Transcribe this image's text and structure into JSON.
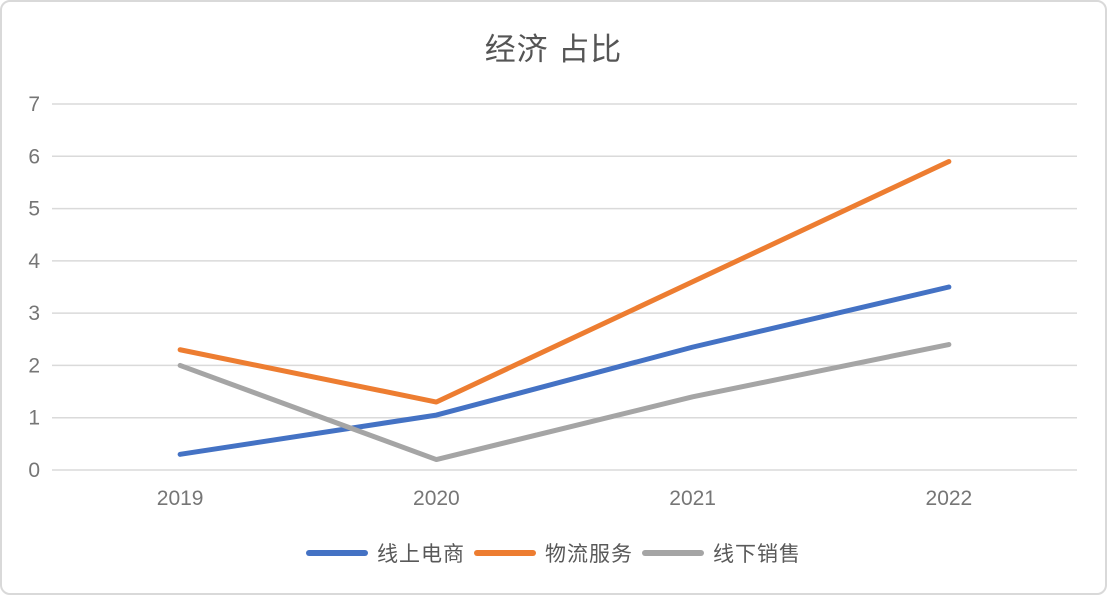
{
  "chart_data": {
    "type": "line",
    "title": "经济 占比",
    "categories": [
      "2019",
      "2020",
      "2021",
      "2022"
    ],
    "series": [
      {
        "name": "线上电商",
        "color": "#4472C4",
        "values": [
          0.3,
          1.05,
          2.35,
          3.5
        ]
      },
      {
        "name": "物流服务",
        "color": "#ED7D31",
        "values": [
          2.3,
          1.3,
          3.6,
          5.9
        ]
      },
      {
        "name": "线下销售",
        "color": "#A5A5A5",
        "values": [
          2.0,
          0.2,
          1.4,
          2.4
        ]
      }
    ],
    "ylim": [
      0,
      7
    ],
    "yticks": [
      "0",
      "1",
      "2",
      "3",
      "4",
      "5",
      "6",
      "7"
    ],
    "xlabel": "",
    "ylabel": "",
    "grid": true,
    "legend_position": "bottom",
    "grid_color": "#dadada",
    "axis_text_color": "#767676",
    "title_color": "#555555"
  }
}
